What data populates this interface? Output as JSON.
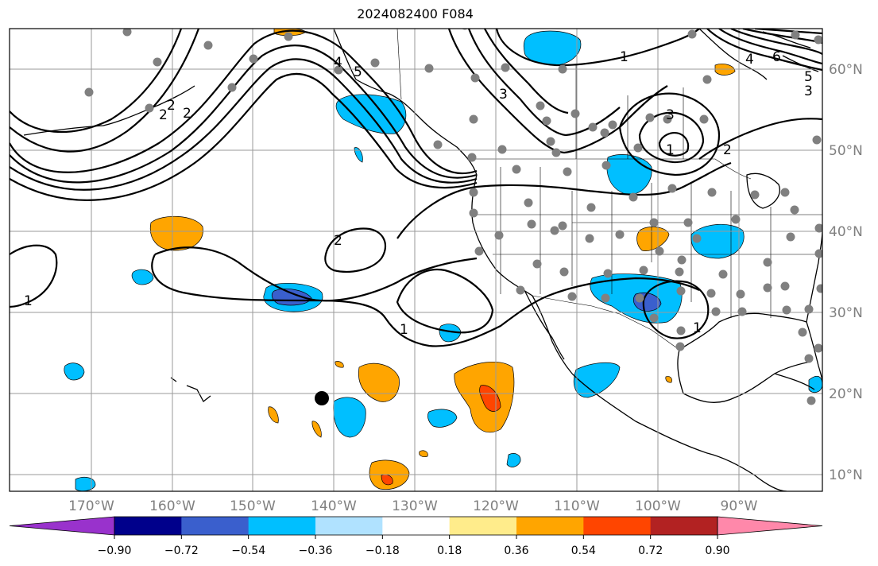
{
  "title": "2024082400 F084",
  "longitude_labels": [
    "170°W",
    "160°W",
    "150°W",
    "140°W",
    "130°W",
    "120°W",
    "110°W",
    "100°W",
    "90°W"
  ],
  "latitude_labels": [
    "60°N",
    "50°N",
    "40°N",
    "30°N",
    "20°N",
    "10°N"
  ],
  "colorbar": {
    "colors": [
      "#9932CC",
      "#00008B",
      "#3A5FCD",
      "#00BFFF",
      "#B0E2FF",
      "#FFFFFF",
      "#FFEC8B",
      "#FFA500",
      "#FF4500",
      "#B22222",
      "#FF88AA"
    ],
    "tick_labels": [
      "−0.90",
      "−0.72",
      "−0.54",
      "−0.36",
      "−0.18",
      "0.18",
      "0.36",
      "0.54",
      "0.72",
      "0.90"
    ]
  },
  "contour_labels": [
    "1",
    "1",
    "1",
    "1",
    "1",
    "2",
    "2",
    "2",
    "2",
    "2",
    "3",
    "3",
    "3",
    "4",
    "4",
    "5",
    "5",
    "6"
  ],
  "colors": {
    "grid": "#9a9a9a",
    "tick_text": "#808080",
    "station_dot": "#808080"
  }
}
